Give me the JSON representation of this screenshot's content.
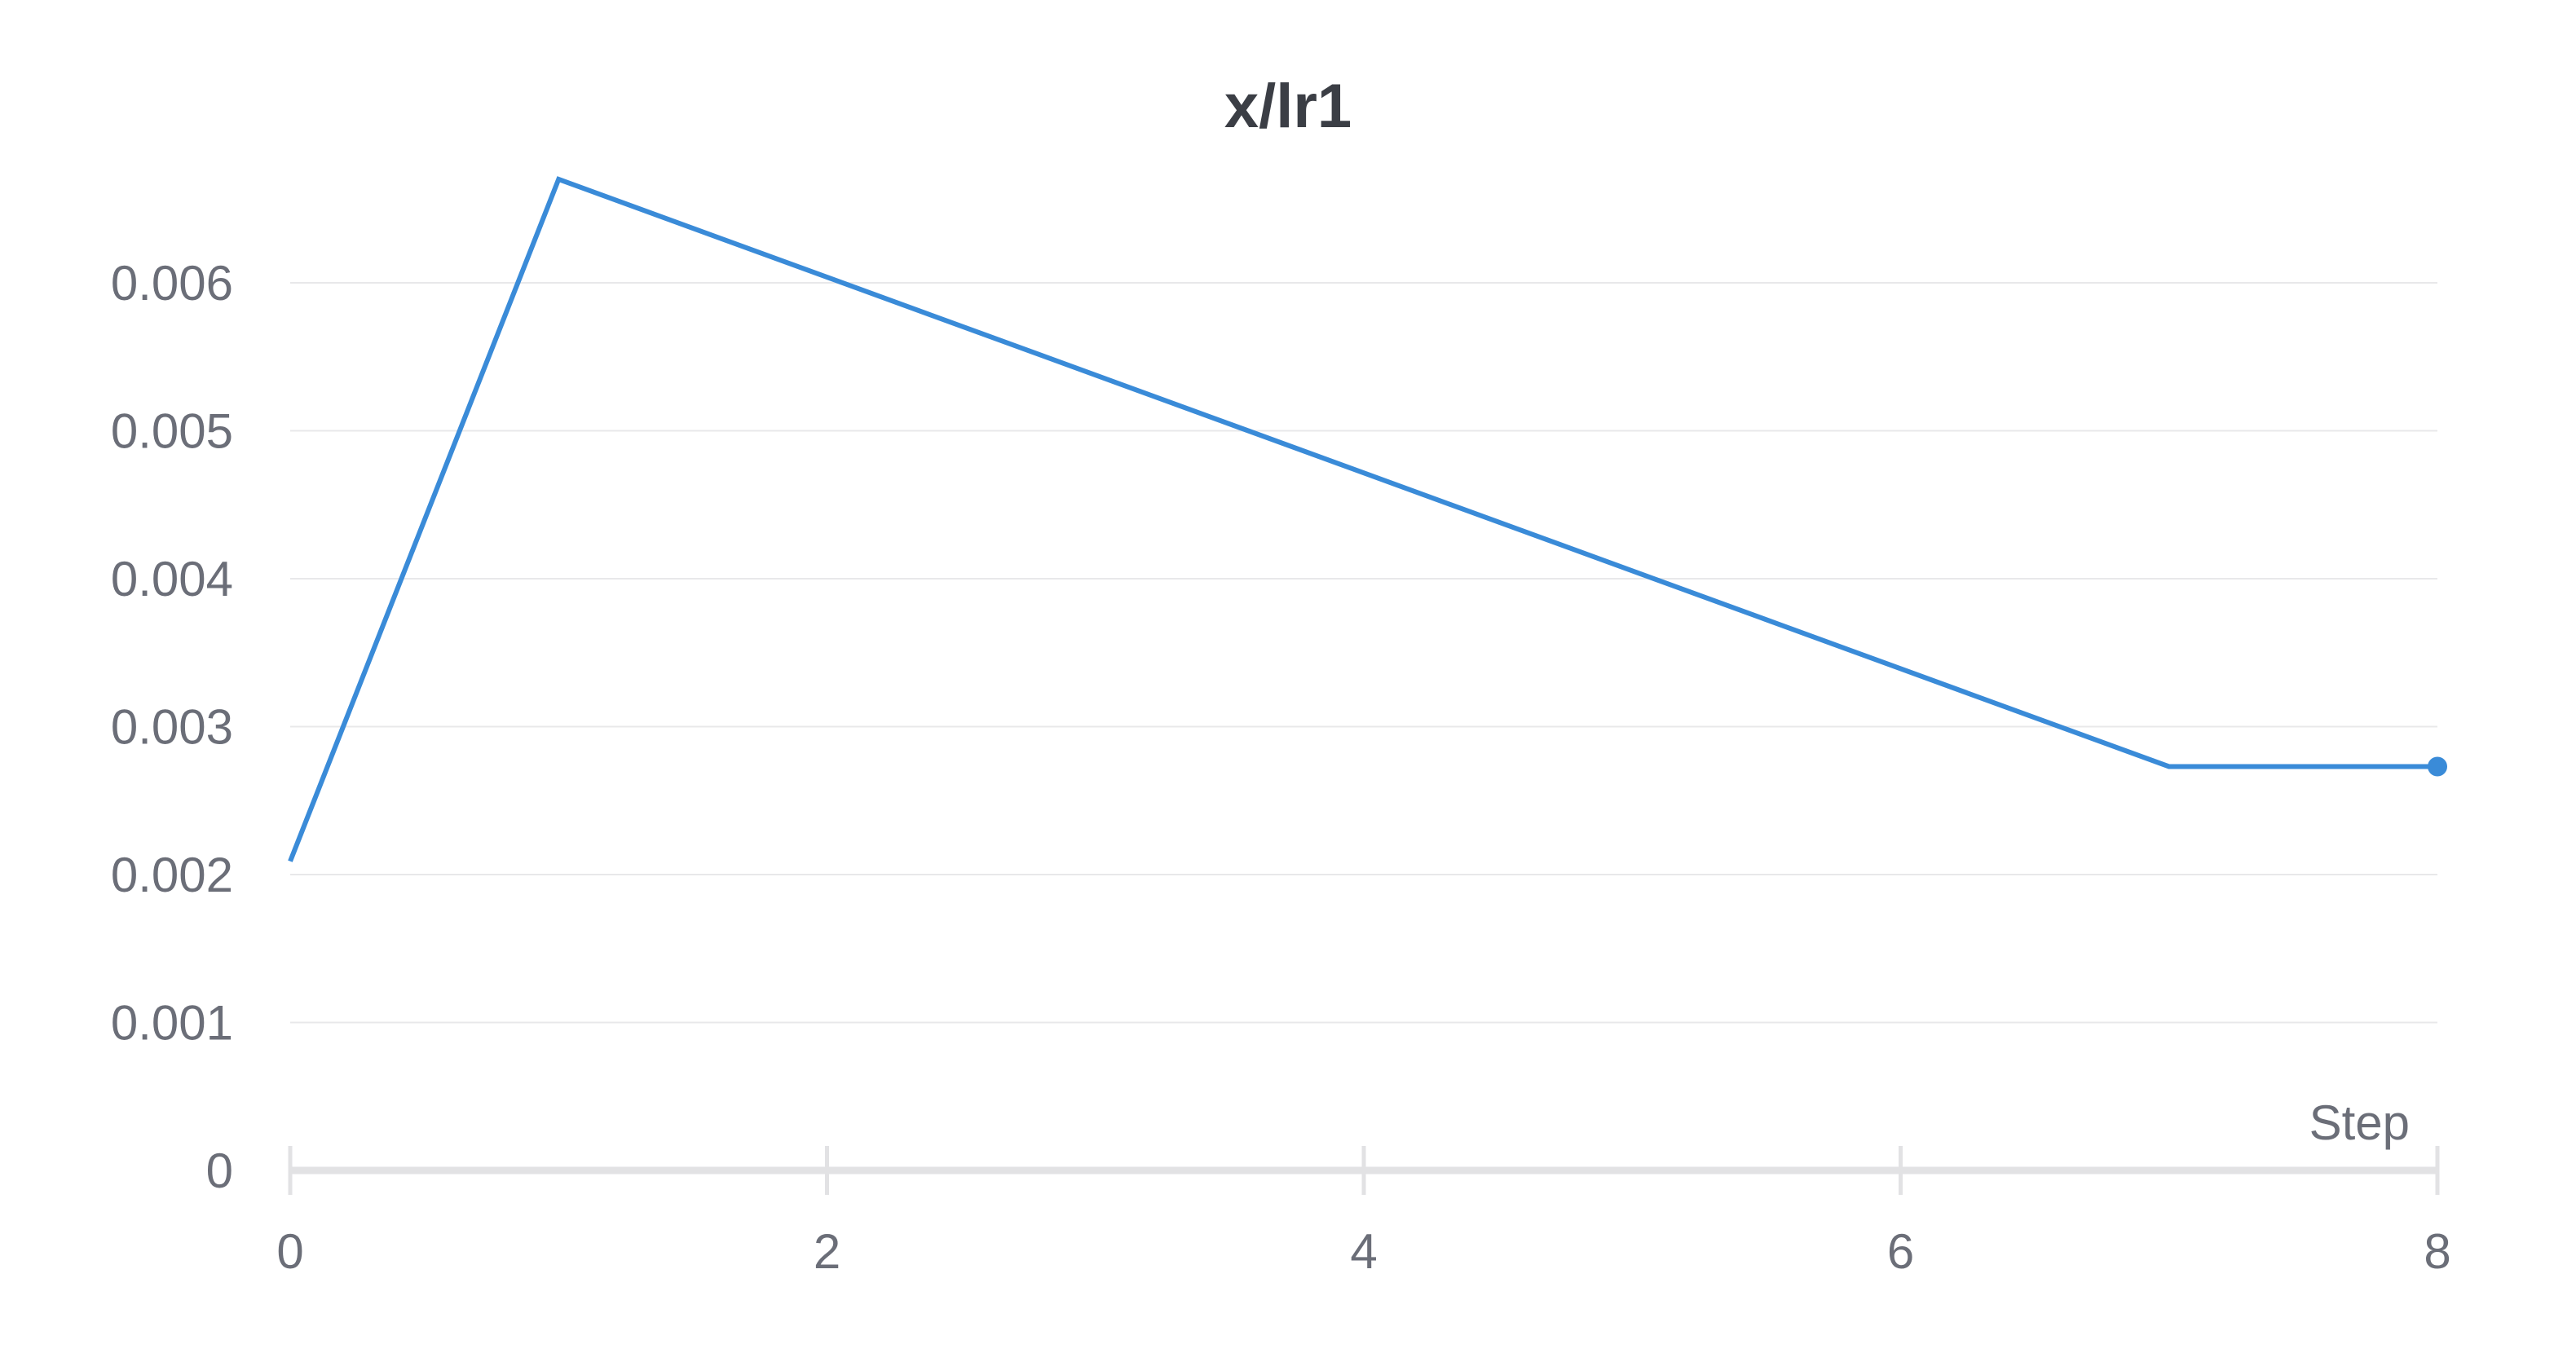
{
  "chart_data": {
    "type": "line",
    "title": "x/lr1",
    "xlabel": "Step",
    "ylabel": "",
    "xlim": [
      0,
      8
    ],
    "ylim": [
      0,
      0.0068
    ],
    "xticks": [
      0,
      2,
      4,
      6,
      8
    ],
    "xtick_labels": [
      "0",
      "2",
      "4",
      "6",
      "8"
    ],
    "yticks": [
      0,
      0.001,
      0.002,
      0.003,
      0.004,
      0.005,
      0.006
    ],
    "ytick_labels": [
      "0",
      "0.001",
      "0.002",
      "0.003",
      "0.004",
      "0.005",
      "0.006"
    ],
    "grid": "horizontal",
    "legend": "none",
    "series": [
      {
        "color": "#3a8bd8",
        "x": [
          0,
          1,
          7,
          8
        ],
        "y": [
          0.00209,
          0.0067,
          0.00273,
          0.00273
        ],
        "end_marker": true
      }
    ]
  },
  "colors": {
    "line": "#3a8bd8",
    "grid": "#e8e8ea",
    "axis": "#e2e2e4",
    "tick_text": "#6b6e78",
    "title": "#3b3e45"
  }
}
